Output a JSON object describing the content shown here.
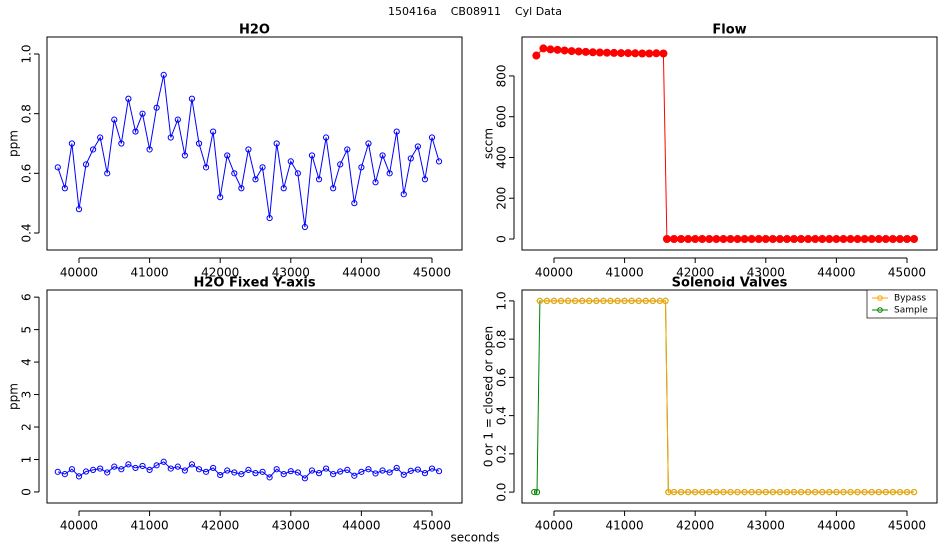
{
  "title": "150416a    CB08911    Cyl Data",
  "x_label": "seconds",
  "chart_data": [
    {
      "type": "line",
      "title": "H2O",
      "y_label": "ppm",
      "markers": "open",
      "x": [
        39700,
        39800,
        39900,
        40000,
        40100,
        40200,
        40300,
        40400,
        40500,
        40600,
        40700,
        40800,
        40900,
        41000,
        41100,
        41200,
        41300,
        41400,
        41500,
        41600,
        41700,
        41800,
        41900,
        42000,
        42100,
        42200,
        42300,
        42400,
        42500,
        42600,
        42700,
        42800,
        42900,
        43000,
        43100,
        43200,
        43300,
        43400,
        43500,
        43600,
        43700,
        43800,
        43900,
        44000,
        44100,
        44200,
        44300,
        44400,
        44500,
        44600,
        44700,
        44800,
        44900,
        45000,
        45100
      ],
      "series": [
        {
          "color": "#0000ff",
          "values": [
            0.62,
            0.55,
            0.7,
            0.48,
            0.63,
            0.68,
            0.72,
            0.6,
            0.78,
            0.7,
            0.85,
            0.74,
            0.8,
            0.68,
            0.82,
            0.93,
            0.72,
            0.78,
            0.66,
            0.85,
            0.7,
            0.62,
            0.74,
            0.52,
            0.66,
            0.6,
            0.55,
            0.68,
            0.58,
            0.62,
            0.45,
            0.7,
            0.55,
            0.64,
            0.6,
            0.42,
            0.66,
            0.58,
            0.72,
            0.55,
            0.63,
            0.68,
            0.5,
            0.62,
            0.7,
            0.57,
            0.66,
            0.6,
            0.74,
            0.53,
            0.65,
            0.69,
            0.58,
            0.72,
            0.64
          ]
        }
      ],
      "xlim": [
        39547,
        45425
      ],
      "xticks": [
        40000,
        41000,
        42000,
        43000,
        44000,
        45000
      ],
      "ylim": [
        0.343,
        1.057
      ],
      "yticks": [
        0.4,
        0.6,
        0.8,
        {
          "value": 1,
          "label": "1.0"
        }
      ]
    },
    {
      "type": "line",
      "title": "Flow",
      "y_label": "sccm",
      "markers": "filled",
      "x": [
        39750,
        39850,
        39950,
        40050,
        40150,
        40250,
        40350,
        40450,
        40550,
        40650,
        40750,
        40850,
        40950,
        41050,
        41150,
        41250,
        41350,
        41450,
        41550,
        41600,
        41700,
        41800,
        41900,
        42000,
        42100,
        42200,
        42300,
        42400,
        42500,
        42600,
        42700,
        42800,
        42900,
        43000,
        43100,
        43200,
        43300,
        43400,
        43500,
        43600,
        43700,
        43800,
        43900,
        44000,
        44100,
        44200,
        44300,
        44400,
        44500,
        44600,
        44700,
        44800,
        44900,
        45000,
        45100
      ],
      "series": [
        {
          "color": "#ff0000",
          "values": [
            900,
            935,
            930,
            928,
            925,
            922,
            920,
            918,
            916,
            915,
            914,
            913,
            912,
            912,
            911,
            910,
            910,
            911,
            910,
            0,
            0,
            0,
            0,
            0,
            0,
            0,
            0,
            0,
            0,
            0,
            0,
            0,
            0,
            0,
            0,
            0,
            0,
            0,
            0,
            0,
            0,
            0,
            0,
            0,
            0,
            0,
            0,
            0,
            0,
            0,
            0,
            0,
            0,
            0,
            0
          ]
        }
      ],
      "xlim": [
        39547,
        45425
      ],
      "xticks": [
        40000,
        41000,
        42000,
        43000,
        44000,
        45000
      ],
      "ylim": [
        -54,
        991
      ],
      "yticks": [
        0,
        200,
        400,
        600,
        800
      ]
    },
    {
      "type": "line",
      "title": "H2O Fixed Y-axis",
      "y_label": "ppm",
      "markers": "open",
      "x": [
        39700,
        39800,
        39900,
        40000,
        40100,
        40200,
        40300,
        40400,
        40500,
        40600,
        40700,
        40800,
        40900,
        41000,
        41100,
        41200,
        41300,
        41400,
        41500,
        41600,
        41700,
        41800,
        41900,
        42000,
        42100,
        42200,
        42300,
        42400,
        42500,
        42600,
        42700,
        42800,
        42900,
        43000,
        43100,
        43200,
        43300,
        43400,
        43500,
        43600,
        43700,
        43800,
        43900,
        44000,
        44100,
        44200,
        44300,
        44400,
        44500,
        44600,
        44700,
        44800,
        44900,
        45000,
        45100
      ],
      "series": [
        {
          "color": "#0000ff",
          "values": [
            0.62,
            0.55,
            0.7,
            0.48,
            0.63,
            0.68,
            0.72,
            0.6,
            0.78,
            0.7,
            0.85,
            0.74,
            0.8,
            0.68,
            0.82,
            0.93,
            0.72,
            0.78,
            0.66,
            0.85,
            0.7,
            0.62,
            0.74,
            0.52,
            0.66,
            0.6,
            0.55,
            0.68,
            0.58,
            0.62,
            0.45,
            0.7,
            0.55,
            0.64,
            0.6,
            0.42,
            0.66,
            0.58,
            0.72,
            0.55,
            0.63,
            0.68,
            0.5,
            0.62,
            0.7,
            0.57,
            0.66,
            0.6,
            0.74,
            0.53,
            0.65,
            0.69,
            0.58,
            0.72,
            0.64
          ]
        }
      ],
      "xlim": [
        39547,
        45425
      ],
      "xticks": [
        40000,
        41000,
        42000,
        43000,
        44000,
        45000
      ],
      "ylim": [
        -0.34,
        6.22
      ],
      "yticks": [
        0,
        1,
        2,
        3,
        4,
        5,
        6
      ]
    },
    {
      "type": "line",
      "title": "Solenoid Valves",
      "y_label": "0 or 1 = closed or open",
      "markers": "open",
      "legend": "topright",
      "x": [
        39720,
        39760,
        39800,
        39900,
        40000,
        40100,
        40200,
        40300,
        40400,
        40500,
        40600,
        40700,
        40800,
        40900,
        41000,
        41100,
        41200,
        41300,
        41400,
        41500,
        41580,
        41620,
        41700,
        41800,
        41900,
        42000,
        42100,
        42200,
        42300,
        42400,
        42500,
        42600,
        42700,
        42800,
        42900,
        43000,
        43100,
        43200,
        43300,
        43400,
        43500,
        43600,
        43700,
        43800,
        43900,
        44000,
        44100,
        44200,
        44300,
        44400,
        44500,
        44600,
        44700,
        44800,
        44900,
        45000,
        45100
      ],
      "series": [
        {
          "name": "Sample",
          "color": "#008000",
          "values": [
            0,
            0,
            1,
            1,
            1,
            1,
            1,
            1,
            1,
            1,
            1,
            1,
            1,
            1,
            1,
            1,
            1,
            1,
            1,
            1,
            1,
            0,
            0,
            0,
            0,
            0,
            0,
            0,
            0,
            0,
            0,
            0,
            0,
            0,
            0,
            0,
            0,
            0,
            0,
            0,
            0,
            0,
            0,
            0,
            0,
            0,
            0,
            0,
            0,
            0,
            0,
            0,
            0,
            0,
            0,
            0,
            0
          ]
        },
        {
          "name": "Bypass",
          "color": "#ffa500",
          "values": [
            null,
            null,
            1,
            1,
            1,
            1,
            1,
            1,
            1,
            1,
            1,
            1,
            1,
            1,
            1,
            1,
            1,
            1,
            1,
            1,
            1,
            0,
            0,
            0,
            0,
            0,
            0,
            0,
            0,
            0,
            0,
            0,
            0,
            0,
            0,
            0,
            0,
            0,
            0,
            0,
            0,
            0,
            0,
            0,
            0,
            0,
            0,
            0,
            0,
            0,
            0,
            0,
            0,
            0,
            0,
            0,
            0
          ]
        }
      ],
      "xlim": [
        39547,
        45425
      ],
      "xticks": [
        40000,
        41000,
        42000,
        43000,
        44000,
        45000
      ],
      "ylim": [
        -0.057,
        1.057
      ],
      "yticks": [
        {
          "value": 0,
          "label": "0.0"
        },
        0.2,
        0.4,
        0.6,
        0.8,
        {
          "value": 1,
          "label": "1.0"
        }
      ]
    }
  ]
}
